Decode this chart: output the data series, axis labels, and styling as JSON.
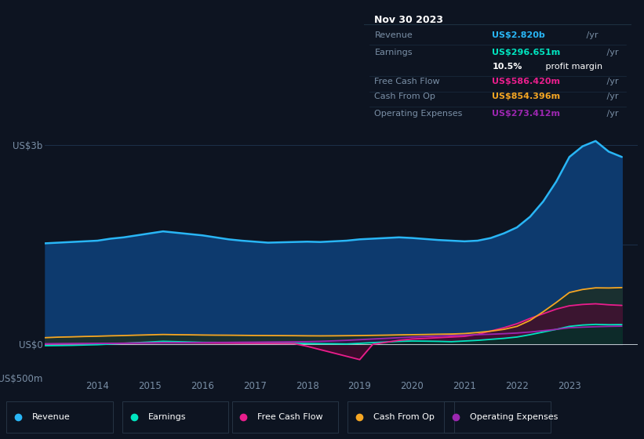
{
  "background_color": "#0d1421",
  "plot_bg_color": "#0d1421",
  "ylim": [
    -500,
    3200
  ],
  "years": [
    2013.0,
    2013.25,
    2013.5,
    2013.75,
    2014.0,
    2014.25,
    2014.5,
    2014.75,
    2015.0,
    2015.25,
    2015.5,
    2015.75,
    2016.0,
    2016.25,
    2016.5,
    2016.75,
    2017.0,
    2017.25,
    2017.5,
    2017.75,
    2018.0,
    2018.25,
    2018.5,
    2018.75,
    2019.0,
    2019.25,
    2019.5,
    2019.75,
    2020.0,
    2020.25,
    2020.5,
    2020.75,
    2021.0,
    2021.25,
    2021.5,
    2021.75,
    2022.0,
    2022.25,
    2022.5,
    2022.75,
    2023.0,
    2023.25,
    2023.5,
    2023.75,
    2024.0
  ],
  "revenue": [
    1520,
    1530,
    1540,
    1550,
    1560,
    1590,
    1610,
    1640,
    1670,
    1700,
    1680,
    1660,
    1640,
    1610,
    1580,
    1560,
    1545,
    1530,
    1535,
    1540,
    1545,
    1540,
    1550,
    1560,
    1580,
    1590,
    1600,
    1610,
    1600,
    1585,
    1570,
    1560,
    1550,
    1560,
    1600,
    1670,
    1760,
    1920,
    2150,
    2450,
    2820,
    2980,
    3060,
    2900,
    2820
  ],
  "earnings": [
    -20,
    -18,
    -15,
    -10,
    -5,
    5,
    15,
    25,
    35,
    45,
    40,
    35,
    30,
    28,
    25,
    22,
    20,
    18,
    17,
    15,
    12,
    10,
    8,
    5,
    15,
    25,
    35,
    45,
    50,
    48,
    45,
    40,
    50,
    60,
    75,
    90,
    110,
    145,
    185,
    225,
    270,
    290,
    300,
    295,
    297
  ],
  "free_cash_flow": [
    5,
    7,
    9,
    11,
    13,
    15,
    17,
    19,
    21,
    23,
    22,
    20,
    18,
    17,
    16,
    15,
    14,
    13,
    12,
    11,
    -30,
    -80,
    -130,
    -180,
    -230,
    0,
    30,
    60,
    80,
    90,
    100,
    110,
    120,
    150,
    200,
    250,
    310,
    390,
    460,
    530,
    580,
    600,
    610,
    595,
    586
  ],
  "cash_from_op": [
    100,
    108,
    112,
    118,
    122,
    128,
    132,
    138,
    143,
    148,
    145,
    143,
    140,
    138,
    137,
    135,
    133,
    132,
    131,
    130,
    128,
    127,
    128,
    130,
    132,
    135,
    138,
    142,
    145,
    148,
    152,
    155,
    162,
    178,
    198,
    225,
    270,
    360,
    490,
    630,
    780,
    825,
    850,
    848,
    854
  ],
  "operating_expenses": [
    8,
    9,
    10,
    11,
    13,
    14,
    16,
    18,
    20,
    22,
    23,
    25,
    27,
    29,
    30,
    32,
    33,
    35,
    36,
    38,
    40,
    45,
    52,
    60,
    70,
    80,
    90,
    100,
    110,
    118,
    125,
    132,
    138,
    145,
    152,
    160,
    170,
    185,
    205,
    225,
    250,
    258,
    265,
    270,
    273
  ],
  "revenue_color": "#29b6f6",
  "earnings_color": "#00e5c0",
  "fcf_color": "#e91e8c",
  "cashop_color": "#f5a623",
  "opex_color": "#9c27b0",
  "revenue_fill": "#0d3a6e",
  "text_color": "#7a8fa6",
  "grid_color": "#1e3550",
  "zero_line_color": "#c0c8d0",
  "legend_bg": "#0a1220",
  "legend_border": "#2a3a4a",
  "tooltip_bg": "#050d18",
  "tooltip_border": "#2a3a4a",
  "tooltip_title": "Nov 30 2023",
  "tooltip_rows": [
    {
      "label": "Revenue",
      "value": "US$2.820b",
      "unit": " /yr",
      "color": "#29b6f6"
    },
    {
      "label": "Earnings",
      "value": "US$296.651m",
      "unit": " /yr",
      "color": "#00e5c0"
    },
    {
      "label": "",
      "value": "10.5%",
      "unit": " profit margin",
      "color": "#ffffff"
    },
    {
      "label": "Free Cash Flow",
      "value": "US$586.420m",
      "unit": " /yr",
      "color": "#e91e8c"
    },
    {
      "label": "Cash From Op",
      "value": "US$854.396m",
      "unit": " /yr",
      "color": "#f5a623"
    },
    {
      "label": "Operating Expenses",
      "value": "US$273.412m",
      "unit": " /yr",
      "color": "#9c27b0"
    }
  ],
  "legend_items": [
    {
      "label": "Revenue",
      "color": "#29b6f6"
    },
    {
      "label": "Earnings",
      "color": "#00e5c0"
    },
    {
      "label": "Free Cash Flow",
      "color": "#e91e8c"
    },
    {
      "label": "Cash From Op",
      "color": "#f5a623"
    },
    {
      "label": "Operating Expenses",
      "color": "#9c27b0"
    }
  ]
}
